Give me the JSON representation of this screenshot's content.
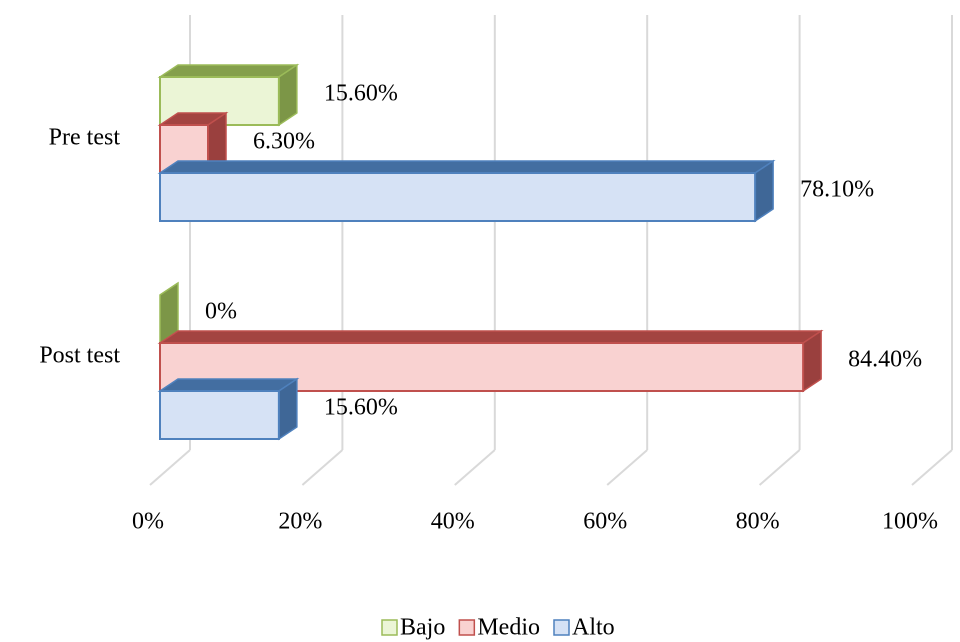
{
  "chart_data": {
    "type": "bar3d_horizontal",
    "categories": [
      "Pre test",
      "Post test"
    ],
    "series": [
      {
        "name": "Bajo",
        "color": "#ebf5d6",
        "edge": "#9bbb59",
        "values": [
          15.6,
          0
        ],
        "value_labels": [
          "15.60%",
          "0%"
        ]
      },
      {
        "name": "Medio",
        "color": "#f9d2d1",
        "edge": "#c0504d",
        "values": [
          6.3,
          84.4
        ],
        "value_labels": [
          "6.30%",
          "84.40%"
        ]
      },
      {
        "name": "Alto",
        "color": "#d6e2f5",
        "edge": "#4f81bd",
        "values": [
          78.1,
          15.6
        ],
        "value_labels": [
          "78.10%",
          "15.60%"
        ]
      }
    ],
    "xlim": [
      0,
      100
    ],
    "xticks": [
      {
        "value": 0,
        "label": "0%"
      },
      {
        "value": 20,
        "label": "20%"
      },
      {
        "value": 40,
        "label": "40%"
      },
      {
        "value": 60,
        "label": "60%"
      },
      {
        "value": 80,
        "label": "80%"
      },
      {
        "value": 100,
        "label": "100%"
      }
    ],
    "grid": true,
    "legend": "bottom"
  }
}
